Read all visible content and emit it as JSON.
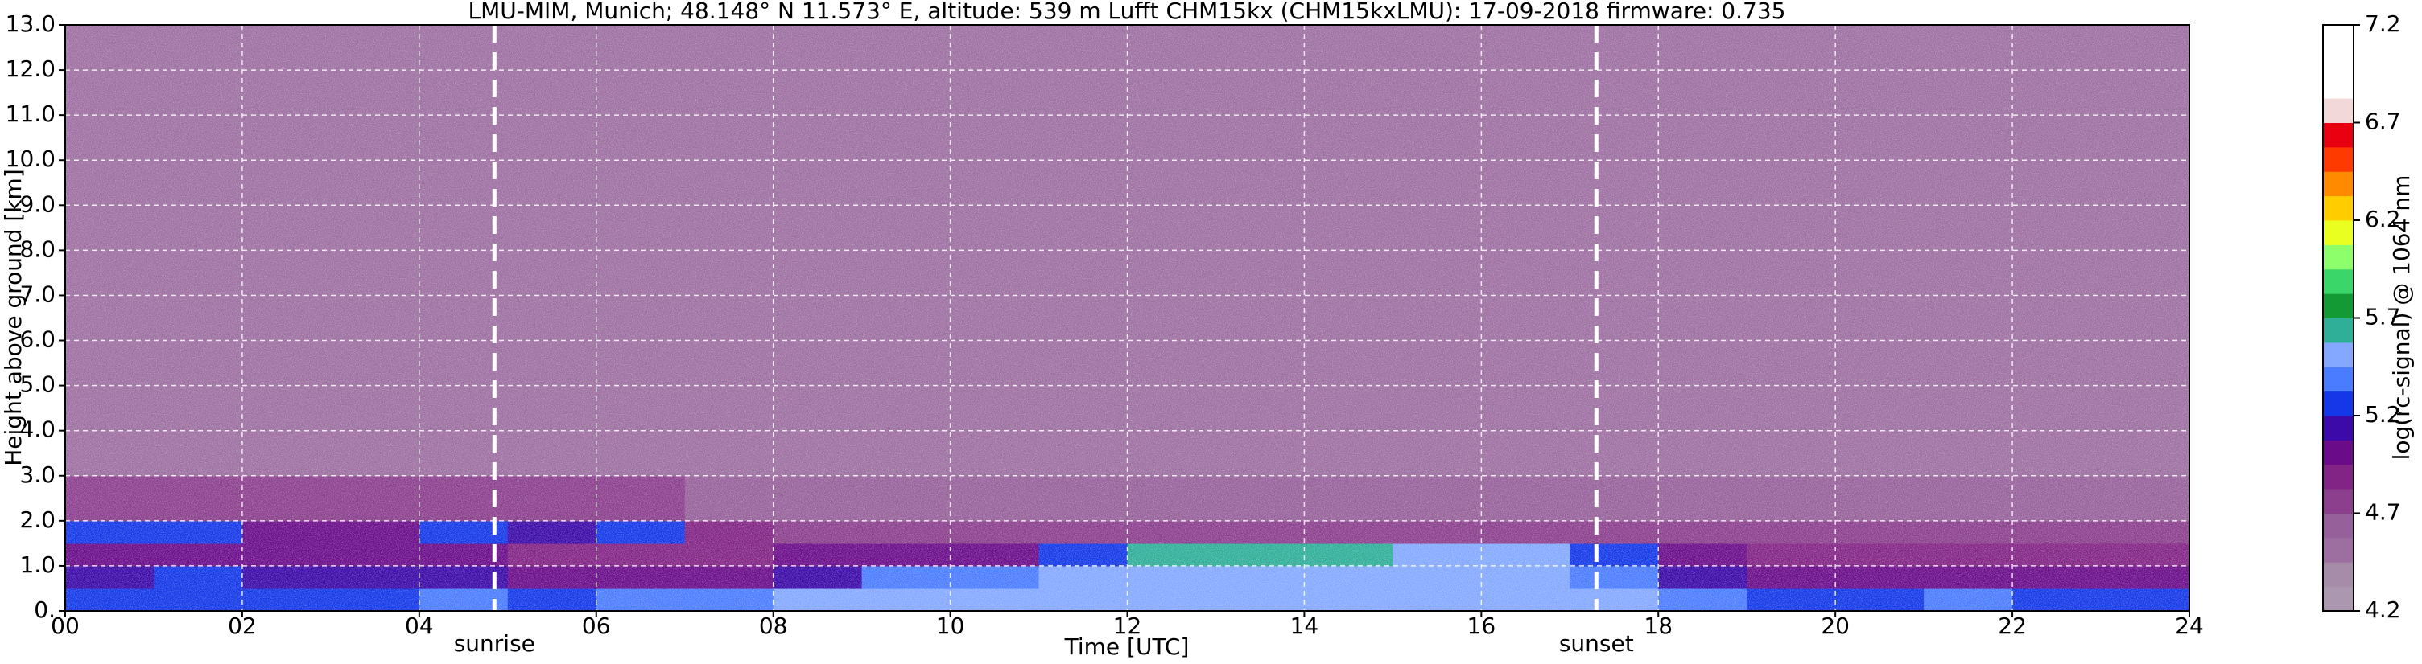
{
  "chart_data": {
    "type": "heatmap",
    "title": "LMU-MIM, Munich; 48.148° N 11.573° E, altitude: 539 m    Lufft CHM15kx (CHM15kxLMU): 17-09-2018    firmware: 0.735",
    "xlabel": "Time [UTC]",
    "ylabel": "Height above ground [km]",
    "colorbar_label": "log(rc-signal) @ 1064 nm",
    "xlim": [
      0,
      24
    ],
    "ylim": [
      0,
      13
    ],
    "xticks": [
      {
        "value": 0,
        "label": "00"
      },
      {
        "value": 2,
        "label": "02"
      },
      {
        "value": 4,
        "label": "04"
      },
      {
        "value": 6,
        "label": "06"
      },
      {
        "value": 8,
        "label": "08"
      },
      10,
      12,
      14,
      16,
      18,
      20,
      22,
      24
    ],
    "yticks": [
      {
        "value": 0,
        "label": "0."
      },
      {
        "value": 1,
        "label": "1.0"
      },
      {
        "value": 2,
        "label": "2.0"
      },
      {
        "value": 3,
        "label": "3.0"
      },
      {
        "value": 4,
        "label": "4.0"
      },
      {
        "value": 5,
        "label": "5.0"
      },
      {
        "value": 6,
        "label": "6.0"
      },
      {
        "value": 7,
        "label": "7.0"
      },
      {
        "value": 8,
        "label": "8.0"
      },
      {
        "value": 9,
        "label": "9.0"
      },
      {
        "value": 10,
        "label": "10.0"
      },
      {
        "value": 11,
        "label": "11.0"
      },
      {
        "value": 12,
        "label": "12.0"
      },
      {
        "value": 13,
        "label": "13.0"
      }
    ],
    "grid": true,
    "clim": [
      4.2,
      7.2
    ],
    "cticks": [
      4.2,
      4.7,
      5.2,
      5.7,
      6.2,
      6.7,
      7.2
    ],
    "colorscale": [
      "#ab97b0",
      "#a68ca9",
      "#9d6fa1",
      "#96619a",
      "#8b3f8d",
      "#822485",
      "#6a0c8a",
      "#3b0aa8",
      "#1438e8",
      "#4a7cff",
      "#84a8ff",
      "#2fae98",
      "#139a35",
      "#3ad66a",
      "#8cff6a",
      "#e8ff20",
      "#ffcc00",
      "#ff8a00",
      "#ff3a00",
      "#e80010",
      "#f2d8d8",
      "#ffffff",
      "#ffffff",
      "#ffffff"
    ],
    "xbins": [
      0,
      1,
      2,
      3,
      4,
      5,
      6,
      7,
      8,
      9,
      10,
      11,
      12,
      13,
      14,
      15,
      16,
      17,
      18,
      19,
      20,
      21,
      22,
      23,
      24
    ],
    "ybins": [
      0,
      0.5,
      1,
      1.5,
      2,
      3,
      13
    ],
    "z": [
      [
        5.3,
        5.3,
        5.3,
        5.3,
        5.35,
        5.3,
        5.35,
        5.4,
        5.5,
        5.5,
        5.5,
        5.5,
        5.55,
        5.55,
        5.55,
        5.55,
        5.5,
        5.5,
        5.35,
        5.3,
        5.3,
        5.35,
        5.3,
        5.3
      ],
      [
        5.15,
        5.2,
        5.15,
        5.15,
        5.1,
        5.05,
        5.05,
        5.05,
        5.1,
        5.35,
        5.4,
        5.45,
        5.45,
        5.45,
        5.45,
        5.45,
        5.45,
        5.4,
        5.1,
        5.05,
        5.0,
        5.0,
        5.0,
        5.0
      ],
      [
        4.95,
        4.95,
        4.95,
        4.95,
        4.95,
        4.9,
        4.9,
        4.9,
        4.95,
        4.95,
        5.0,
        5.3,
        5.6,
        5.6,
        5.65,
        5.55,
        5.45,
        5.3,
        4.95,
        4.9,
        4.9,
        4.9,
        4.9,
        4.9
      ],
      [
        5.25,
        5.2,
        5.0,
        5.05,
        5.2,
        5.1,
        5.2,
        4.85,
        4.8,
        4.8,
        4.8,
        4.8,
        4.75,
        4.8,
        4.8,
        4.75,
        4.75,
        4.75,
        4.75,
        4.75,
        4.75,
        4.75,
        4.75,
        4.75
      ],
      [
        4.7,
        4.7,
        4.7,
        4.7,
        4.7,
        4.7,
        4.7,
        4.65,
        4.65,
        4.65,
        4.65,
        4.6,
        4.6,
        4.6,
        4.6,
        4.6,
        4.6,
        4.6,
        4.6,
        4.6,
        4.6,
        4.6,
        4.6,
        4.6
      ],
      [
        4.5,
        4.5,
        4.5,
        4.5,
        4.5,
        4.5,
        4.5,
        4.5,
        4.5,
        4.5,
        4.5,
        4.5,
        4.5,
        4.5,
        4.5,
        4.5,
        4.5,
        4.5,
        4.5,
        4.5,
        4.5,
        4.5,
        4.5,
        4.5
      ]
    ],
    "annotations": [
      {
        "text": "sunrise",
        "x": 4.85
      },
      {
        "text": "sunset",
        "x": 17.3
      }
    ]
  }
}
